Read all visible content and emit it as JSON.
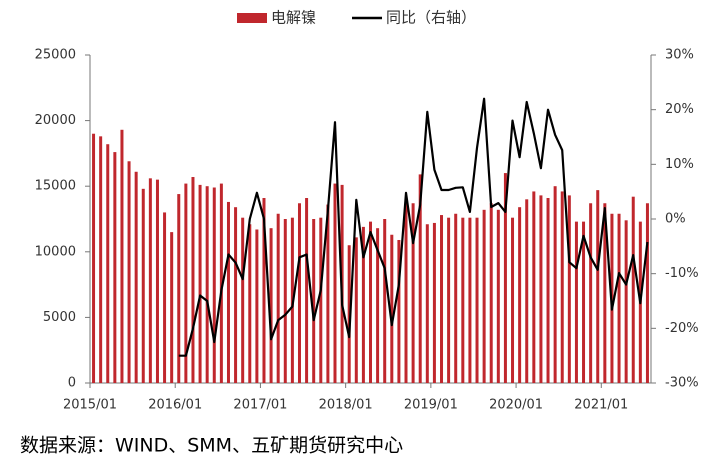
{
  "chart_data": {
    "type": "bar_line",
    "source": "数据来源：WIND、SMM、五矿期货研究中心",
    "categories": [
      "2015/01",
      null,
      null,
      null,
      null,
      null,
      null,
      null,
      null,
      null,
      null,
      null,
      "2016/01",
      null,
      null,
      null,
      null,
      null,
      null,
      null,
      null,
      null,
      null,
      null,
      "2017/01",
      null,
      null,
      null,
      null,
      null,
      null,
      null,
      null,
      null,
      null,
      null,
      "2018/01",
      null,
      null,
      null,
      null,
      null,
      null,
      null,
      null,
      null,
      null,
      null,
      "2019/01",
      null,
      null,
      null,
      null,
      null,
      null,
      null,
      null,
      null,
      null,
      null,
      "2020/01",
      null,
      null,
      null,
      null,
      null,
      null,
      null,
      null,
      null,
      null,
      null,
      "2021/01",
      null,
      null,
      null,
      null,
      null,
      null
    ],
    "series": [
      {
        "name": "电解镍",
        "color": "#c0272d",
        "values": [
          19000,
          18800,
          18200,
          17600,
          19300,
          16900,
          16100,
          14800,
          15600,
          15500,
          13000,
          11500,
          14400,
          15200,
          15700,
          15100,
          15000,
          14900,
          15200,
          13800,
          13400,
          12600,
          12100,
          11700,
          14100,
          11800,
          12900,
          12500,
          12600,
          13700,
          14100,
          12500,
          12600,
          13600,
          15200,
          15100,
          10500,
          11100,
          11900,
          12300,
          11800,
          12500,
          11300,
          10900,
          13800,
          13700,
          15900,
          12100,
          12200,
          12800,
          12600,
          12900,
          12600,
          12600,
          12600,
          13200,
          13700,
          13200,
          16000,
          12600,
          13400,
          14000,
          14600,
          14300,
          14100,
          15000,
          14600,
          14300,
          12300,
          12300,
          13700,
          14700,
          13700,
          12900,
          12900,
          12400,
          14200,
          12300,
          13700
        ]
      },
      {
        "name": "同比（右轴）",
        "color": "#000000",
        "axis": "y2",
        "values": [
          null,
          null,
          null,
          null,
          null,
          null,
          null,
          null,
          null,
          null,
          null,
          null,
          -25,
          -25,
          -20,
          -14,
          -15,
          -22.5,
          -13,
          -6.5,
          -8,
          -11,
          0,
          4.8,
          0,
          -22,
          -18.5,
          -17.5,
          -16,
          -7,
          -6.5,
          -18.5,
          -13,
          1.6,
          17.7,
          -15.7,
          -21.6,
          3.5,
          -7,
          -2.4,
          -5.7,
          -9,
          -19.4,
          -12,
          4.8,
          -4.4,
          2.6,
          19.6,
          9,
          5.3,
          5.3,
          5.7,
          5.8,
          1.3,
          13,
          22,
          2.2,
          2.9,
          1.3,
          18,
          11.3,
          21.4,
          15.7,
          9.3,
          20,
          15.4,
          12.6,
          -7.9,
          -9,
          -3.1,
          -7,
          -9.3,
          2,
          -16.6,
          -9.9,
          -12,
          -6.6,
          -15.4,
          -4.2
        ]
      }
    ],
    "ylim": [
      0,
      25000
    ],
    "yticks": [
      0,
      5000,
      10000,
      15000,
      20000,
      25000
    ],
    "y2lim": [
      -30,
      30
    ],
    "y2ticks": [
      {
        "value": -30,
        "label": "-30%"
      },
      {
        "value": -20,
        "label": "-20%"
      },
      {
        "value": -10,
        "label": "-10%"
      },
      {
        "value": 0,
        "label": "0%"
      },
      {
        "value": 10,
        "label": "10%"
      },
      {
        "value": 20,
        "label": "20%"
      },
      {
        "value": 30,
        "label": "30%"
      }
    ],
    "legend": "top"
  }
}
